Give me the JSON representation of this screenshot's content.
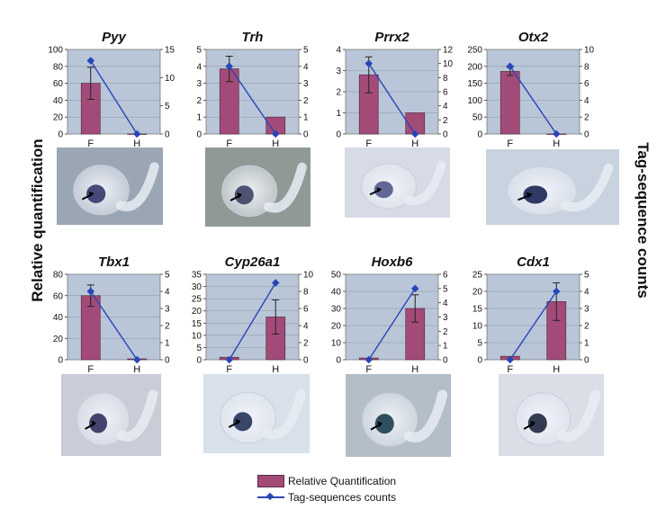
{
  "figure": {
    "left_axis_label": "Relative quantification",
    "right_axis_label": "Tag-sequence counts",
    "bar_color": "#a34b78",
    "line_color": "#2a45b8",
    "plot_background": "#b8c6d8",
    "legend": {
      "bar_label": "Relative Quantification",
      "line_label": "Tag-sequences counts"
    }
  },
  "chart_data": [
    {
      "type": "bar",
      "title": "Pyy",
      "categories": [
        "F",
        "H"
      ],
      "series": [
        {
          "name": "Relative Quantification",
          "axis": "left",
          "values": [
            60,
            0
          ],
          "error": [
            19,
            0
          ]
        },
        {
          "name": "Tag-sequences counts",
          "axis": "right",
          "type": "line",
          "values": [
            13,
            0
          ]
        }
      ],
      "ylim_left": [
        0,
        100
      ],
      "yticks_left": [
        0,
        20,
        40,
        60,
        80,
        100
      ],
      "ylim_right": [
        0,
        15
      ],
      "yticks_right": [
        0,
        5,
        10,
        15
      ]
    },
    {
      "type": "bar",
      "title": "Trh",
      "categories": [
        "F",
        "H"
      ],
      "series": [
        {
          "name": "Relative Quantification",
          "axis": "left",
          "values": [
            3.85,
            1.0
          ],
          "error": [
            0.75,
            0
          ]
        },
        {
          "name": "Tag-sequences counts",
          "axis": "right",
          "type": "line",
          "values": [
            4,
            0
          ]
        }
      ],
      "ylim_left": [
        0,
        5
      ],
      "yticks_left": [
        0,
        1,
        2,
        3,
        4,
        5
      ],
      "ylim_right": [
        0,
        5
      ],
      "yticks_right": [
        0,
        1,
        2,
        3,
        4,
        5
      ]
    },
    {
      "type": "bar",
      "title": "Prrx2",
      "categories": [
        "F",
        "H"
      ],
      "series": [
        {
          "name": "Relative Quantification",
          "axis": "left",
          "values": [
            2.8,
            1.0
          ],
          "error": [
            0.85,
            0
          ]
        },
        {
          "name": "Tag-sequences counts",
          "axis": "right",
          "type": "line",
          "values": [
            10,
            0
          ]
        }
      ],
      "ylim_left": [
        0,
        4
      ],
      "yticks_left": [
        0,
        1,
        2,
        3,
        4
      ],
      "ylim_right": [
        0,
        12
      ],
      "yticks_right": [
        0,
        2,
        4,
        6,
        8,
        10,
        12
      ]
    },
    {
      "type": "bar",
      "title": "Otx2",
      "categories": [
        "F",
        "H"
      ],
      "series": [
        {
          "name": "Relative Quantification",
          "axis": "left",
          "values": [
            185,
            0
          ],
          "error": [
            12,
            0
          ]
        },
        {
          "name": "Tag-sequences counts",
          "axis": "right",
          "type": "line",
          "values": [
            8,
            0
          ]
        }
      ],
      "ylim_left": [
        0,
        250
      ],
      "yticks_left": [
        0,
        50,
        100,
        150,
        200,
        250
      ],
      "ylim_right": [
        0,
        10
      ],
      "yticks_right": [
        0,
        2,
        4,
        6,
        8,
        10
      ]
    },
    {
      "type": "bar",
      "title": "Tbx1",
      "categories": [
        "F",
        "H"
      ],
      "series": [
        {
          "name": "Relative Quantification",
          "axis": "left",
          "values": [
            60,
            0.8
          ],
          "error": [
            10,
            0
          ]
        },
        {
          "name": "Tag-sequences counts",
          "axis": "right",
          "type": "line",
          "values": [
            4,
            0
          ]
        }
      ],
      "ylim_left": [
        0,
        80
      ],
      "yticks_left": [
        0,
        20,
        40,
        60,
        80
      ],
      "ylim_right": [
        0,
        5
      ],
      "yticks_right": [
        0,
        1,
        2,
        3,
        4,
        5
      ]
    },
    {
      "type": "bar",
      "title": "Cyp26a1",
      "categories": [
        "F",
        "H"
      ],
      "series": [
        {
          "name": "Relative Quantification",
          "axis": "left",
          "values": [
            1.0,
            17.5
          ],
          "error": [
            0,
            7
          ]
        },
        {
          "name": "Tag-sequences counts",
          "axis": "right",
          "type": "line",
          "values": [
            0,
            9
          ]
        }
      ],
      "ylim_left": [
        0,
        35
      ],
      "yticks_left": [
        0,
        5,
        10,
        15,
        20,
        25,
        30,
        35
      ],
      "ylim_right": [
        0,
        10
      ],
      "yticks_right": [
        0,
        2,
        4,
        6,
        8,
        10
      ]
    },
    {
      "type": "bar",
      "title": "Hoxb6",
      "categories": [
        "F",
        "H"
      ],
      "series": [
        {
          "name": "Relative Quantification",
          "axis": "left",
          "values": [
            1.0,
            30
          ],
          "error": [
            0,
            8
          ]
        },
        {
          "name": "Tag-sequences counts",
          "axis": "right",
          "type": "line",
          "values": [
            0,
            5
          ]
        }
      ],
      "ylim_left": [
        0,
        50
      ],
      "yticks_left": [
        0,
        10,
        20,
        30,
        40,
        50
      ],
      "ylim_right": [
        0,
        6
      ],
      "yticks_right": [
        0,
        1,
        2,
        3,
        4,
        5,
        6
      ]
    },
    {
      "type": "bar",
      "title": "Cdx1",
      "categories": [
        "F",
        "H"
      ],
      "series": [
        {
          "name": "Relative Quantification",
          "axis": "left",
          "values": [
            1.0,
            17
          ],
          "error": [
            0,
            5.5
          ]
        },
        {
          "name": "Tag-sequences counts",
          "axis": "right",
          "type": "line",
          "values": [
            0,
            4
          ]
        }
      ],
      "ylim_left": [
        0,
        25
      ],
      "yticks_left": [
        0,
        5,
        10,
        15,
        20,
        25
      ],
      "ylim_right": [
        0,
        5
      ],
      "yticks_right": [
        0,
        1,
        2,
        3,
        4,
        5
      ]
    }
  ],
  "photos": [
    {
      "name": "pyy-embryo-photo",
      "background": "#9ba6b4",
      "stain": "#2b2e63"
    },
    {
      "name": "trh-embryo-photo",
      "background": "#8f9a96",
      "stain": "#33385a"
    },
    {
      "name": "prrx2-embryo-photo",
      "background": "#d6dbe6",
      "stain": "#4a4f86"
    },
    {
      "name": "otx2-embryo-photo",
      "background": "#c9d3e0",
      "stain": "#0e1a4a"
    },
    {
      "name": "tbx1-embryo-photo",
      "background": "#c8cdd8",
      "stain": "#2a2456"
    },
    {
      "name": "cyp26a1-embryo-photo",
      "background": "#d8e0ea",
      "stain": "#1a2850"
    },
    {
      "name": "hoxb6-embryo-photo",
      "background": "#b4bec8",
      "stain": "#0e3445"
    },
    {
      "name": "cdx1-embryo-photo",
      "background": "#d9dee7",
      "stain": "#121c34"
    }
  ]
}
